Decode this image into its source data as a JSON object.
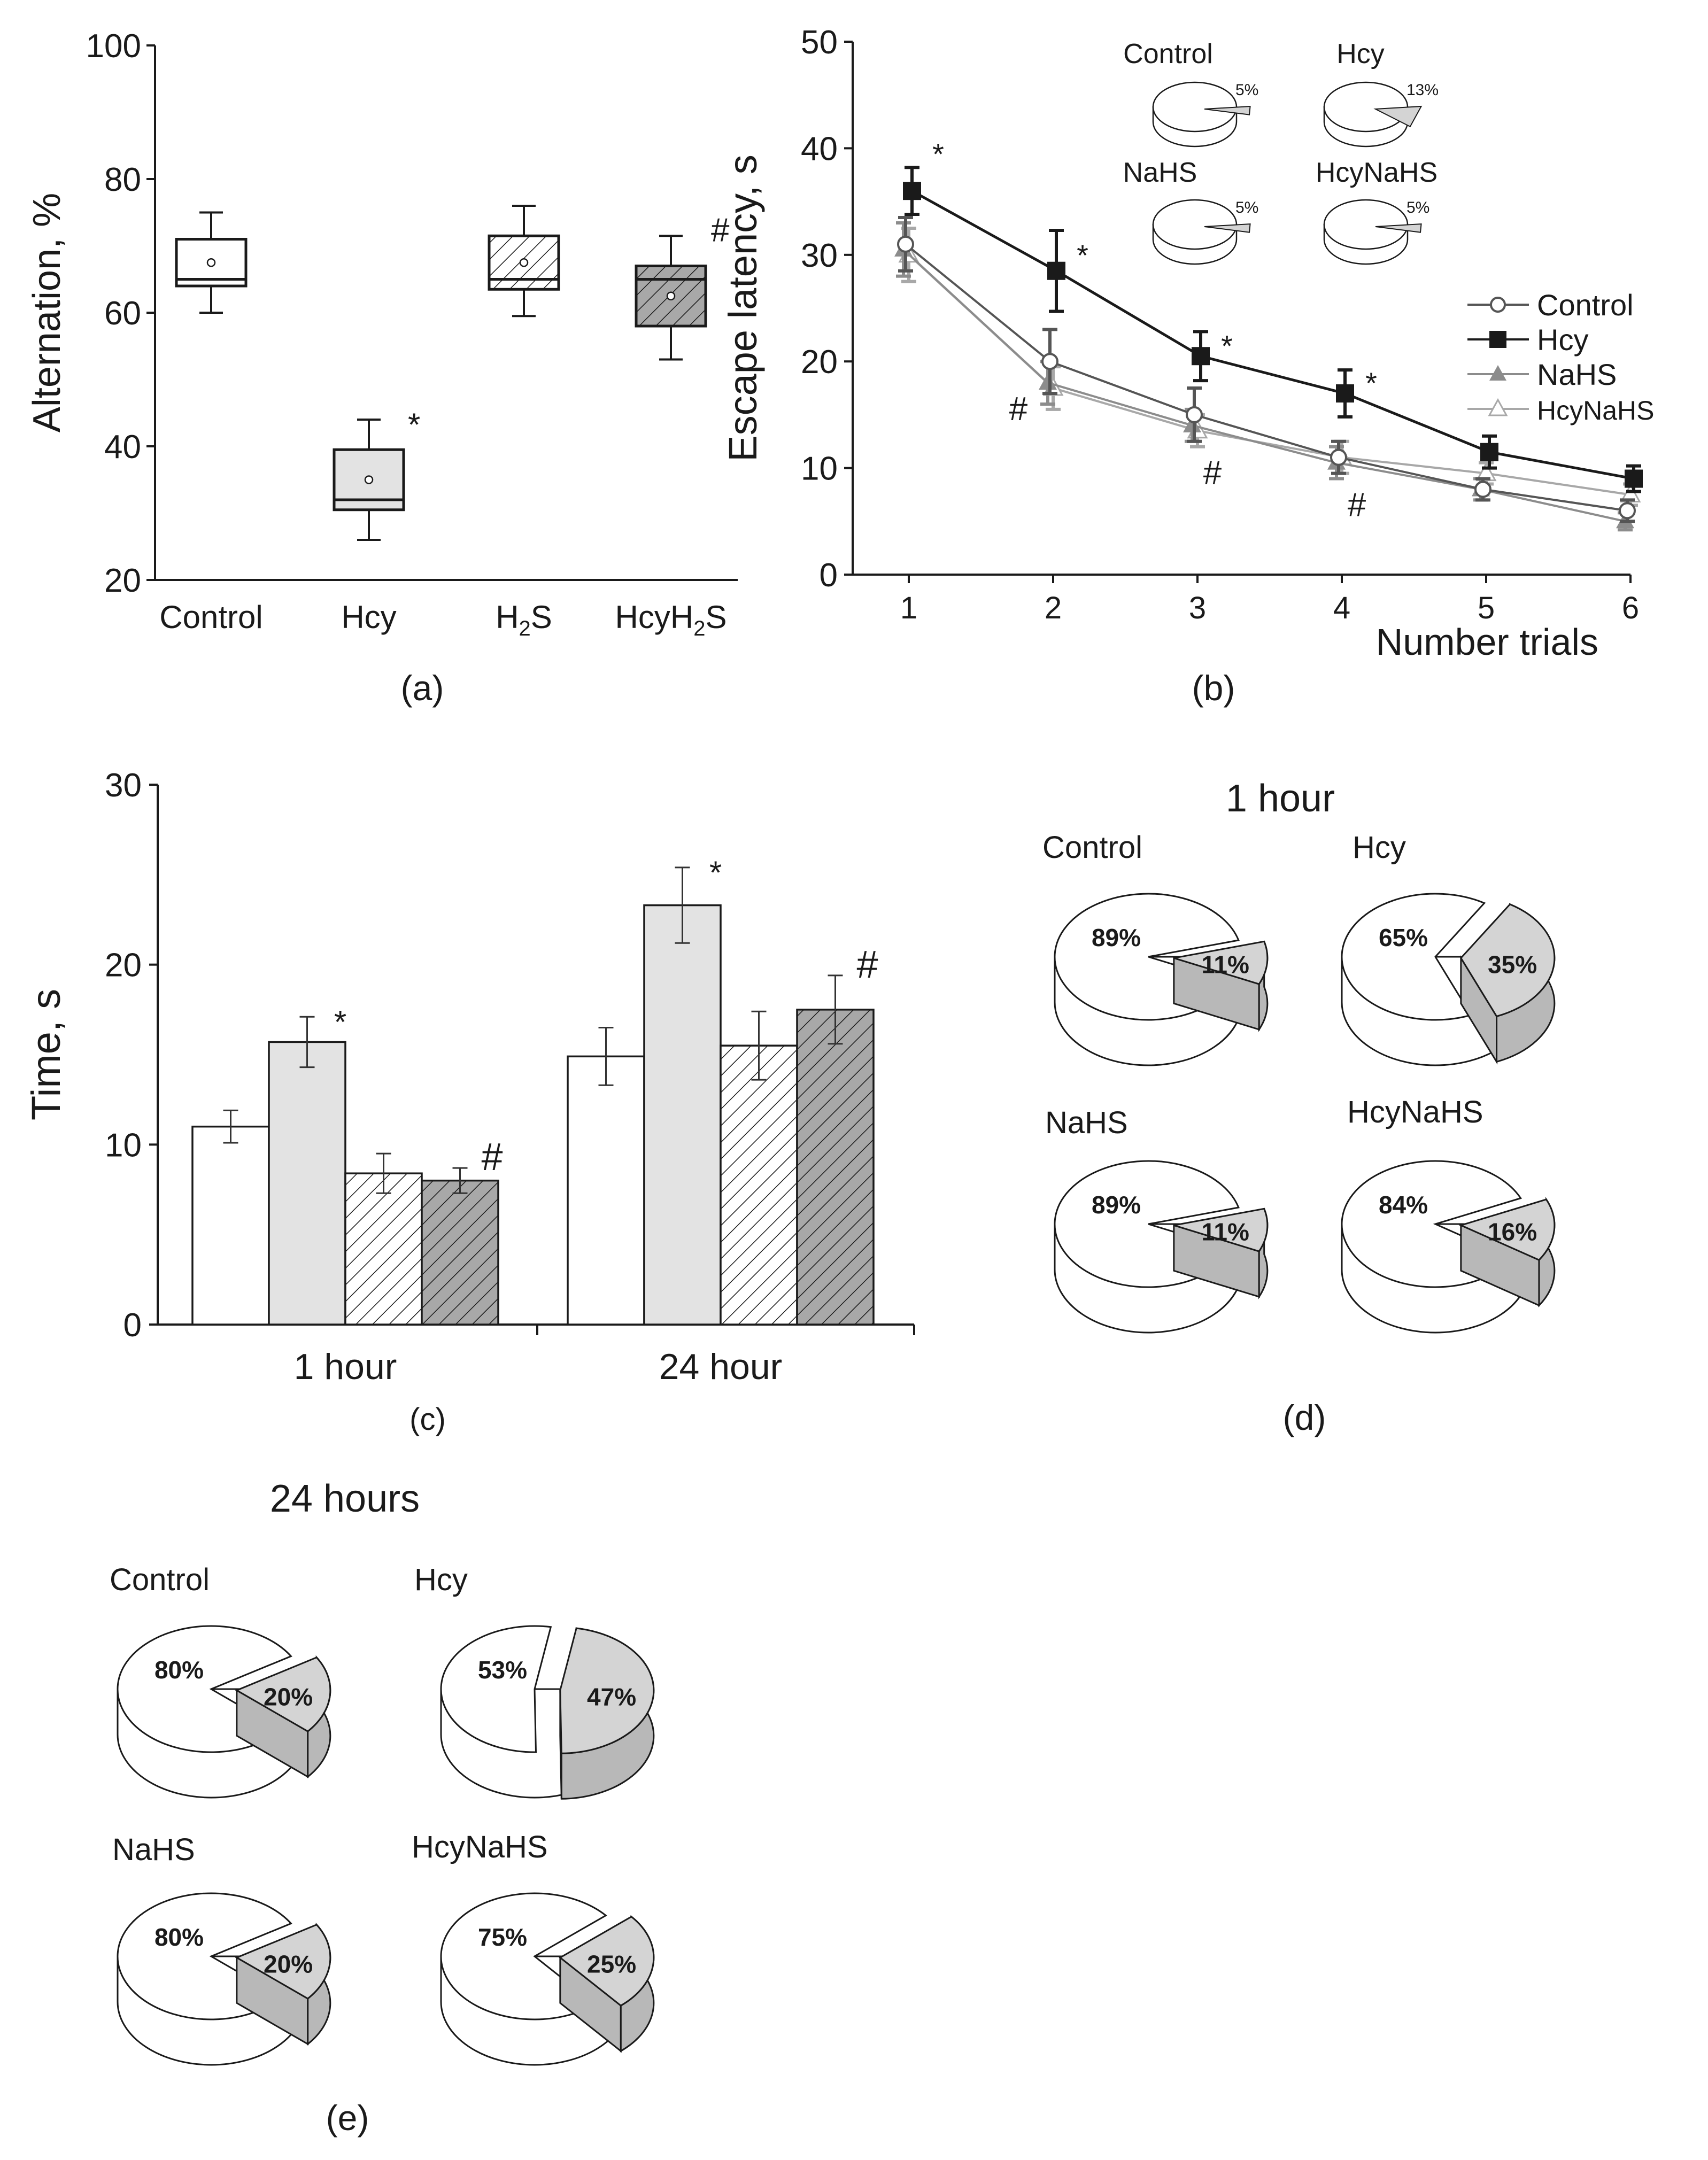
{
  "chart_data": [
    {
      "panel": "(a)",
      "type": "box",
      "ylabel": "Alternation, %",
      "ylim": [
        20,
        100
      ],
      "yticks": [
        20,
        40,
        60,
        80,
        100
      ],
      "categories": [
        "Control",
        "Hcy",
        "H2S",
        "HcyH2S"
      ],
      "category_labels": [
        {
          "main": "Control",
          "sub": "",
          "tail": ""
        },
        {
          "main": "Hcy",
          "sub": "",
          "tail": ""
        },
        {
          "main": "H",
          "sub": "2",
          "tail": "S"
        },
        {
          "main": "HcyH",
          "sub": "2",
          "tail": "S"
        }
      ],
      "boxes": [
        {
          "name": "Control",
          "whisker_low": 60,
          "q1": 64,
          "median": 65,
          "q3": 71,
          "whisker_high": 75,
          "mean": 67.5,
          "fill": "#ffffff",
          "hatch": false,
          "annotation": ""
        },
        {
          "name": "Hcy",
          "whisker_low": 26,
          "q1": 30.5,
          "median": 32,
          "q3": 39.5,
          "whisker_high": 44,
          "mean": 35,
          "fill": "#e3e3e3",
          "hatch": false,
          "annotation": "*"
        },
        {
          "name": "H2S",
          "whisker_low": 59.5,
          "q1": 63.5,
          "median": 65,
          "q3": 71.5,
          "whisker_high": 76,
          "mean": 67.5,
          "fill": "#ffffff",
          "hatch": true,
          "annotation": ""
        },
        {
          "name": "HcyH2S",
          "whisker_low": 53,
          "q1": 58,
          "median": 65,
          "q3": 67,
          "whisker_high": 71.5,
          "mean": 62.5,
          "fill": "#a8a8a8",
          "hatch": true,
          "annotation": "#"
        }
      ]
    },
    {
      "panel": "(b)",
      "type": "line",
      "ylabel": "Escape latency, s",
      "xlabel": "Number trials",
      "x": [
        1,
        2,
        3,
        4,
        5,
        6
      ],
      "ylim": [
        0,
        50
      ],
      "yticks": [
        0,
        10,
        20,
        30,
        40,
        50
      ],
      "series": [
        {
          "name": "Control",
          "values": [
            31,
            20,
            15,
            11,
            8,
            6
          ],
          "errors": [
            2.5,
            3,
            2.5,
            1.5,
            1,
            1
          ],
          "color": "#555555",
          "marker": "circle-open"
        },
        {
          "name": "Hcy",
          "values": [
            36,
            28.5,
            20.5,
            17,
            11.5,
            9
          ],
          "errors": [
            2.2,
            3.8,
            2.3,
            2.2,
            1.5,
            1.2
          ],
          "color": "#1a1a1a",
          "marker": "square-filled"
        },
        {
          "name": "NaHS",
          "values": [
            30.5,
            18,
            14,
            10.5,
            8,
            5
          ],
          "errors": [
            2.5,
            2,
            1.5,
            1.5,
            1,
            0.8
          ],
          "color": "#8c8c8c",
          "marker": "triangle-filled"
        },
        {
          "name": "HcyNaHS",
          "values": [
            30,
            17.5,
            13.5,
            11,
            9.5,
            7.5
          ],
          "errors": [
            2.5,
            2,
            1.5,
            1.5,
            1,
            1
          ],
          "color": "#a8a8a8",
          "marker": "triangle-open"
        }
      ],
      "annotations": [
        {
          "text": "*",
          "x": 1,
          "y": 39.5
        },
        {
          "text": "*",
          "x": 2,
          "y": 30
        },
        {
          "text": "*",
          "x": 3,
          "y": 21.5
        },
        {
          "text": "*",
          "x": 4,
          "y": 18
        },
        {
          "text": "#",
          "x": 2,
          "y": 15.5
        },
        {
          "text": "#",
          "x": 3,
          "y": 9.5
        },
        {
          "text": "#",
          "x": 4,
          "y": 6.5
        }
      ],
      "inset_pies": [
        {
          "name": "Control",
          "percent": "5%",
          "slice": 5
        },
        {
          "name": "Hcy",
          "percent": "13%",
          "slice": 13
        },
        {
          "name": "NaHS",
          "percent": "5%",
          "slice": 5
        },
        {
          "name": "HcyNaHS",
          "percent": "5%",
          "slice": 5
        }
      ]
    },
    {
      "panel": "(c)",
      "type": "bar",
      "ylabel": "Time, s",
      "ylim": [
        0,
        30
      ],
      "yticks": [
        0,
        10,
        20,
        30
      ],
      "categories": [
        "1 hour",
        "24 hour"
      ],
      "series": [
        {
          "name": "Control",
          "values": [
            11,
            14.9
          ],
          "errors": [
            0.9,
            1.6
          ],
          "fill": "#ffffff",
          "hatch": false
        },
        {
          "name": "Hcy",
          "values": [
            15.7,
            23.3
          ],
          "errors": [
            1.4,
            2.1
          ],
          "fill": "#e3e3e3",
          "hatch": false
        },
        {
          "name": "NaHS",
          "values": [
            8.4,
            15.5
          ],
          "errors": [
            1.1,
            1.9
          ],
          "fill": "#ffffff",
          "hatch": true
        },
        {
          "name": "HcyNaHS",
          "values": [
            8,
            17.5
          ],
          "errors": [
            0.7,
            1.9
          ],
          "fill": "#a8a8a8",
          "hatch": true
        }
      ],
      "annotations": [
        {
          "text": "*",
          "category": 0,
          "series": 1
        },
        {
          "text": "#",
          "category": 0,
          "series": 3
        },
        {
          "text": "*",
          "category": 1,
          "series": 1
        },
        {
          "text": "#",
          "category": 1,
          "series": 3
        }
      ]
    },
    {
      "panel": "(d)",
      "type": "pie",
      "title": "1 hour",
      "pies": [
        {
          "name": "Control",
          "major": 89,
          "minor": 11,
          "major_label": "89%",
          "minor_label": "11%"
        },
        {
          "name": "Hcy",
          "major": 65,
          "minor": 35,
          "major_label": "65%",
          "minor_label": "35%"
        },
        {
          "name": "NaHS",
          "major": 89,
          "minor": 11,
          "major_label": "89%",
          "minor_label": "11%"
        },
        {
          "name": "HcyNaHS",
          "major": 84,
          "minor": 16,
          "major_label": "84%",
          "minor_label": "16%"
        }
      ]
    },
    {
      "panel": "(e)",
      "type": "pie",
      "title": "24 hours",
      "pies": [
        {
          "name": "Control",
          "major": 80,
          "minor": 20,
          "major_label": "80%",
          "minor_label": "20%"
        },
        {
          "name": "Hcy",
          "major": 53,
          "minor": 47,
          "major_label": "53%",
          "minor_label": "47%"
        },
        {
          "name": "NaHS",
          "major": 80,
          "minor": 20,
          "major_label": "80%",
          "minor_label": "20%"
        },
        {
          "name": "HcyNaHS",
          "major": 75,
          "minor": 25,
          "major_label": "75%",
          "minor_label": "25%"
        }
      ]
    }
  ],
  "colors": {
    "axis": "#1a1a1a",
    "slice_fill": "#d4d4d4",
    "slice_side": "#b8b8b8",
    "white": "#ffffff"
  }
}
